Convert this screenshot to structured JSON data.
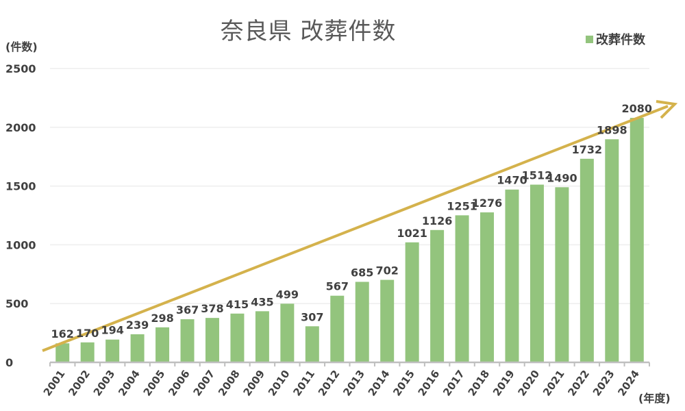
{
  "title": "奈良県 改葬件数",
  "y_unit_label": "(件数)",
  "x_unit_label": "(年度)",
  "legend": {
    "label": "改葬件数",
    "color": "#93c47d"
  },
  "colors": {
    "bar": "#93c47d",
    "trend_arrow": "#d4b24c",
    "gridline": "#eeeeee",
    "axis": "#bfbfbf",
    "label_text": "#404040"
  },
  "chart_data": {
    "type": "bar",
    "title": "奈良県 改葬件数",
    "xlabel": "(年度)",
    "ylabel": "(件数)",
    "ylim": [
      0,
      2500
    ],
    "yticks": [
      0,
      500,
      1000,
      1500,
      2000,
      2500
    ],
    "grid": true,
    "legend_position": "top-right",
    "categories": [
      "2001",
      "2002",
      "2003",
      "2004",
      "2005",
      "2006",
      "2007",
      "2008",
      "2009",
      "2010",
      "2011",
      "2012",
      "2013",
      "2014",
      "2015",
      "2016",
      "2017",
      "2018",
      "2019",
      "2020",
      "2021",
      "2022",
      "2023",
      "2024"
    ],
    "series": [
      {
        "name": "改葬件数",
        "values": [
          162,
          170,
          194,
          239,
          298,
          367,
          378,
          415,
          435,
          499,
          307,
          567,
          685,
          702,
          1021,
          1126,
          1251,
          1276,
          1470,
          1512,
          1490,
          1732,
          1898,
          2080
        ]
      }
    ],
    "annotations": [
      {
        "type": "arrow",
        "description": "upward trend arrow",
        "from": "lower-left",
        "to": "upper-right"
      }
    ]
  }
}
